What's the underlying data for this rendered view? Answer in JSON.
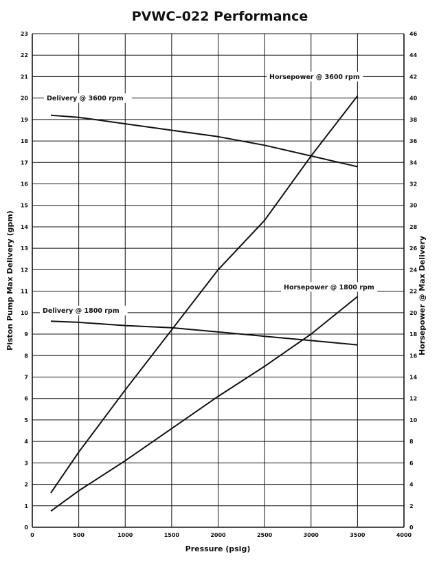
{
  "chart_data": {
    "type": "line",
    "title": "PVWC–022 Performance",
    "xlabel": "Pressure (psig)",
    "ylabel": "Piston Pump Max Delivery (gpm)",
    "y2label": "Horsepower @ Max Delivery",
    "xlim": [
      0,
      4000
    ],
    "ylim": [
      0,
      23
    ],
    "y2lim": [
      0,
      46
    ],
    "grid": true,
    "x_ticks": [
      0,
      500,
      1000,
      1500,
      2000,
      2500,
      3000,
      3500,
      4000
    ],
    "y_ticks": [
      0,
      1,
      2,
      3,
      4,
      5,
      6,
      7,
      8,
      9,
      10,
      11,
      12,
      13,
      14,
      15,
      16,
      17,
      18,
      19,
      20,
      21,
      22,
      23
    ],
    "y2_ticks": [
      0,
      2,
      4,
      6,
      8,
      10,
      12,
      14,
      16,
      18,
      20,
      22,
      24,
      26,
      28,
      30,
      32,
      34,
      36,
      38,
      40,
      42,
      44,
      46
    ],
    "series": [
      {
        "name": "Delivery @ 3600 rpm",
        "axis": "left",
        "x": [
          200,
          500,
          1000,
          1500,
          2000,
          2500,
          3000,
          3500
        ],
        "y": [
          19.2,
          19.1,
          18.8,
          18.5,
          18.2,
          17.8,
          17.3,
          16.8
        ]
      },
      {
        "name": "Horsepower @ 3600 rpm",
        "axis": "right",
        "x": [
          200,
          500,
          1000,
          1500,
          2000,
          2500,
          3000,
          3500
        ],
        "y": [
          3.2,
          7.0,
          12.8,
          18.4,
          24.0,
          28.6,
          34.6,
          40.2
        ]
      },
      {
        "name": "Delivery @ 1800 rpm",
        "axis": "left",
        "x": [
          200,
          500,
          1000,
          1500,
          2000,
          2500,
          3000,
          3500
        ],
        "y": [
          9.6,
          9.55,
          9.4,
          9.3,
          9.1,
          8.9,
          8.7,
          8.5
        ]
      },
      {
        "name": "Horsepower @ 1800 rpm",
        "axis": "right",
        "x": [
          200,
          500,
          1000,
          1500,
          2000,
          2500,
          3000,
          3500
        ],
        "y": [
          1.5,
          3.4,
          6.2,
          9.2,
          12.2,
          15.0,
          18.0,
          21.5
        ]
      }
    ]
  }
}
